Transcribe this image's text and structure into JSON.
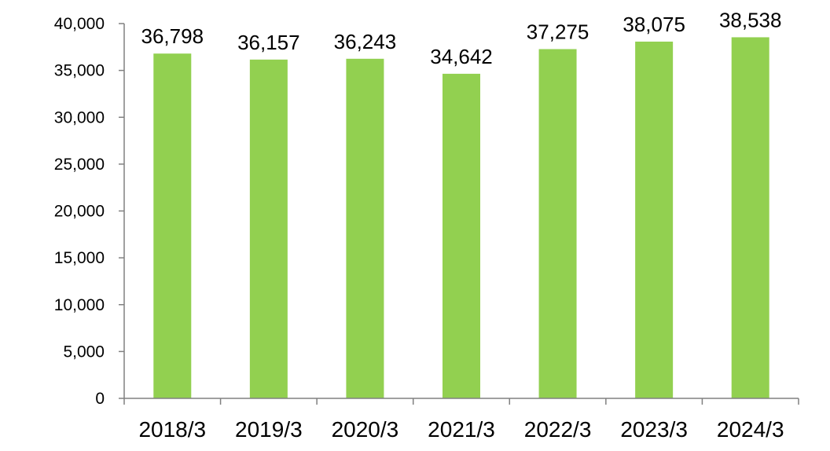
{
  "chart_data": {
    "type": "bar",
    "title": "",
    "xlabel": "",
    "ylabel": "",
    "categories": [
      "2018/3",
      "2019/3",
      "2020/3",
      "2021/3",
      "2022/3",
      "2023/3",
      "2024/3"
    ],
    "values": [
      36798,
      36157,
      36243,
      34642,
      37275,
      38075,
      38538
    ],
    "data_labels": [
      "36,798",
      "36,157",
      "36,243",
      "34,642",
      "37,275",
      "38,075",
      "38,538"
    ],
    "ylim": [
      0,
      40000
    ],
    "yticks": [
      0,
      5000,
      10000,
      15000,
      20000,
      25000,
      30000,
      35000,
      40000
    ],
    "ytick_labels": [
      "0",
      "5,000",
      "10,000",
      "15,000",
      "20,000",
      "25,000",
      "30,000",
      "35,000",
      "40,000"
    ],
    "grid": false,
    "legend": "none",
    "bar_color": "#92d050",
    "axis_color": "#808080"
  }
}
